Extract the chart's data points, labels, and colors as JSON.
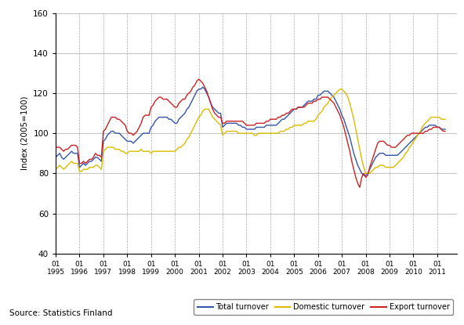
{
  "title": "",
  "ylabel": "Index (2005=100)",
  "source_text": "Source: Statistics Finland",
  "ylim": [
    40,
    160
  ],
  "yticks": [
    40,
    60,
    80,
    100,
    120,
    140,
    160
  ],
  "legend_labels": [
    "Total turnover",
    "Domestic turnover",
    "Export turnover"
  ],
  "legend_colors": [
    "#3355aa",
    "#ddbb00",
    "#cc2222"
  ],
  "background_color": "#ffffff",
  "grid_color": "#aaaaaa",
  "total_turnover": [
    88,
    89,
    90,
    88,
    87,
    88,
    89,
    90,
    91,
    90,
    90,
    90,
    83,
    84,
    85,
    84,
    85,
    86,
    86,
    87,
    88,
    88,
    87,
    86,
    96,
    97,
    99,
    100,
    101,
    101,
    100,
    100,
    100,
    99,
    98,
    97,
    96,
    96,
    96,
    95,
    96,
    97,
    98,
    99,
    100,
    100,
    100,
    100,
    103,
    104,
    106,
    107,
    108,
    108,
    108,
    108,
    108,
    107,
    107,
    106,
    105,
    105,
    107,
    108,
    109,
    110,
    112,
    113,
    115,
    117,
    119,
    121,
    122,
    122,
    123,
    122,
    120,
    118,
    115,
    113,
    112,
    111,
    110,
    110,
    103,
    104,
    105,
    105,
    105,
    105,
    105,
    105,
    104,
    104,
    103,
    103,
    102,
    102,
    102,
    102,
    102,
    103,
    103,
    103,
    103,
    103,
    104,
    104,
    104,
    104,
    104,
    104,
    105,
    106,
    107,
    107,
    108,
    109,
    110,
    111,
    112,
    112,
    113,
    113,
    113,
    114,
    115,
    116,
    116,
    116,
    117,
    117,
    119,
    119,
    120,
    121,
    121,
    121,
    120,
    119,
    118,
    116,
    114,
    112,
    109,
    107,
    104,
    101,
    98,
    94,
    90,
    87,
    84,
    82,
    80,
    79,
    79,
    80,
    82,
    84,
    86,
    88,
    89,
    90,
    90,
    90,
    89,
    89,
    89,
    89,
    89,
    89,
    89,
    90,
    91,
    92,
    93,
    94,
    95,
    96,
    97,
    98,
    99,
    100,
    101,
    102,
    103,
    103,
    104,
    104,
    104,
    104,
    103,
    103,
    102,
    102,
    102
  ],
  "domestic_turnover": [
    82,
    83,
    84,
    83,
    82,
    83,
    84,
    85,
    86,
    85,
    85,
    85,
    81,
    81,
    82,
    82,
    82,
    83,
    83,
    83,
    84,
    84,
    83,
    82,
    91,
    92,
    93,
    93,
    93,
    93,
    92,
    92,
    92,
    91,
    91,
    90,
    90,
    91,
    91,
    91,
    91,
    91,
    91,
    92,
    91,
    91,
    91,
    91,
    90,
    91,
    91,
    91,
    91,
    91,
    91,
    91,
    91,
    91,
    91,
    91,
    91,
    92,
    93,
    93,
    94,
    95,
    97,
    98,
    100,
    102,
    104,
    106,
    108,
    109,
    111,
    112,
    112,
    112,
    110,
    108,
    107,
    106,
    105,
    104,
    99,
    100,
    101,
    101,
    101,
    101,
    101,
    101,
    100,
    100,
    100,
    100,
    100,
    100,
    100,
    100,
    99,
    99,
    100,
    100,
    100,
    100,
    100,
    100,
    100,
    100,
    100,
    100,
    100,
    101,
    101,
    101,
    102,
    102,
    103,
    103,
    104,
    104,
    104,
    104,
    104,
    105,
    105,
    106,
    106,
    106,
    106,
    107,
    109,
    110,
    111,
    113,
    114,
    115,
    117,
    118,
    119,
    120,
    121,
    122,
    122,
    121,
    120,
    118,
    115,
    111,
    107,
    102,
    97,
    92,
    87,
    83,
    80,
    80,
    80,
    81,
    82,
    83,
    83,
    84,
    84,
    84,
    83,
    83,
    83,
    83,
    83,
    84,
    85,
    86,
    87,
    88,
    90,
    91,
    93,
    94,
    96,
    97,
    99,
    100,
    102,
    104,
    105,
    106,
    107,
    108,
    108,
    108,
    108,
    108,
    107,
    107,
    107
  ],
  "export_turnover": [
    93,
    93,
    93,
    92,
    91,
    92,
    92,
    93,
    94,
    94,
    94,
    93,
    85,
    85,
    86,
    85,
    86,
    87,
    87,
    88,
    90,
    89,
    89,
    88,
    101,
    102,
    104,
    106,
    108,
    108,
    108,
    107,
    107,
    106,
    105,
    104,
    101,
    100,
    100,
    99,
    100,
    101,
    103,
    105,
    108,
    109,
    109,
    109,
    113,
    114,
    116,
    117,
    118,
    118,
    117,
    117,
    117,
    116,
    115,
    114,
    113,
    113,
    115,
    116,
    117,
    117,
    119,
    120,
    121,
    123,
    124,
    126,
    127,
    126,
    125,
    123,
    121,
    118,
    115,
    112,
    110,
    109,
    108,
    108,
    105,
    105,
    106,
    106,
    106,
    106,
    106,
    106,
    106,
    106,
    106,
    105,
    104,
    104,
    104,
    104,
    104,
    105,
    105,
    105,
    105,
    105,
    106,
    106,
    107,
    107,
    107,
    107,
    108,
    108,
    109,
    109,
    110,
    110,
    111,
    112,
    112,
    112,
    113,
    113,
    113,
    113,
    114,
    115,
    115,
    115,
    116,
    116,
    117,
    117,
    118,
    118,
    118,
    118,
    117,
    116,
    115,
    113,
    111,
    109,
    106,
    103,
    99,
    95,
    91,
    86,
    82,
    78,
    75,
    73,
    78,
    80,
    78,
    79,
    83,
    86,
    89,
    92,
    95,
    96,
    96,
    96,
    95,
    94,
    94,
    93,
    93,
    93,
    94,
    95,
    96,
    97,
    98,
    99,
    99,
    100,
    100,
    100,
    100,
    100,
    100,
    100,
    101,
    101,
    102,
    102,
    103,
    103,
    103,
    103,
    102,
    101,
    101
  ],
  "n_points": 197,
  "start_year": 1995,
  "x_tick_years": [
    1995,
    1996,
    1997,
    1998,
    1999,
    2000,
    2001,
    2002,
    2003,
    2004,
    2005,
    2006,
    2007,
    2008,
    2009,
    2010,
    2011
  ]
}
